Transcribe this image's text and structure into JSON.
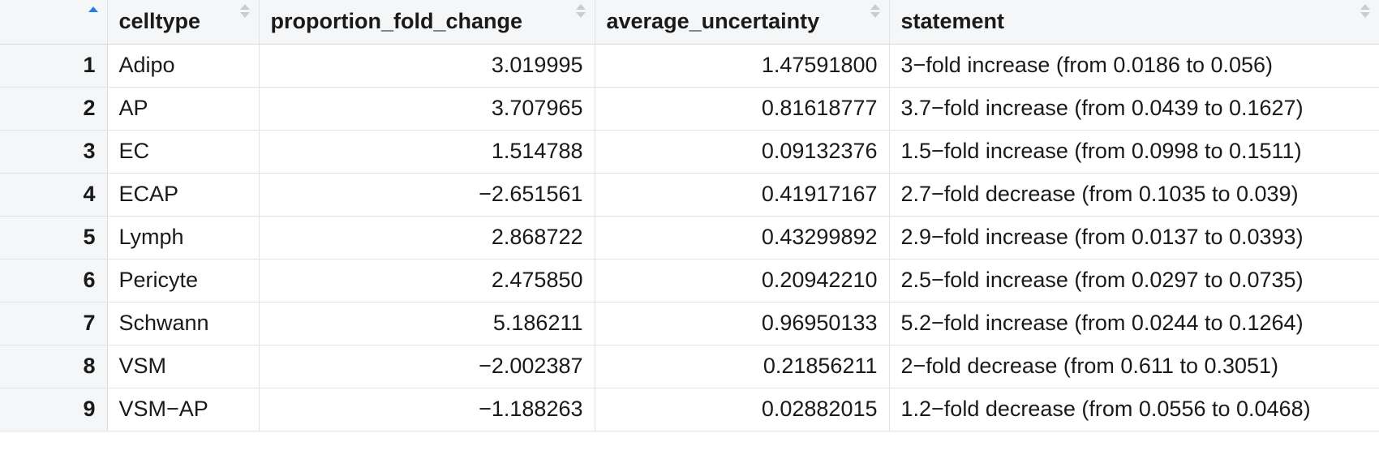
{
  "table": {
    "columns": [
      {
        "label": "",
        "sort": "ascending"
      },
      {
        "label": "celltype",
        "sort": "none"
      },
      {
        "label": "proportion_fold_change",
        "sort": "none"
      },
      {
        "label": "average_uncertainty",
        "sort": "none"
      },
      {
        "label": "statement",
        "sort": "none"
      }
    ],
    "rows": [
      {
        "index": "1",
        "celltype": "Adipo",
        "proportion_fold_change": "3.019995",
        "average_uncertainty": "1.47591800",
        "statement": "3−fold increase (from 0.0186 to 0.056)"
      },
      {
        "index": "2",
        "celltype": "AP",
        "proportion_fold_change": "3.707965",
        "average_uncertainty": "0.81618777",
        "statement": "3.7−fold increase (from 0.0439 to 0.1627)"
      },
      {
        "index": "3",
        "celltype": "EC",
        "proportion_fold_change": "1.514788",
        "average_uncertainty": "0.09132376",
        "statement": "1.5−fold increase (from 0.0998 to 0.1511)"
      },
      {
        "index": "4",
        "celltype": "ECAP",
        "proportion_fold_change": "−2.651561",
        "average_uncertainty": "0.41917167",
        "statement": "2.7−fold decrease (from 0.1035 to 0.039)"
      },
      {
        "index": "5",
        "celltype": "Lymph",
        "proportion_fold_change": "2.868722",
        "average_uncertainty": "0.43299892",
        "statement": "2.9−fold increase (from 0.0137 to 0.0393)"
      },
      {
        "index": "6",
        "celltype": "Pericyte",
        "proportion_fold_change": "2.475850",
        "average_uncertainty": "0.20942210",
        "statement": "2.5−fold increase (from 0.0297 to 0.0735)"
      },
      {
        "index": "7",
        "celltype": "Schwann",
        "proportion_fold_change": "5.186211",
        "average_uncertainty": "0.96950133",
        "statement": "5.2−fold increase (from 0.0244 to 0.1264)"
      },
      {
        "index": "8",
        "celltype": "VSM",
        "proportion_fold_change": "−2.002387",
        "average_uncertainty": "0.21856211",
        "statement": "2−fold decrease (from 0.611 to 0.3051)"
      },
      {
        "index": "9",
        "celltype": "VSM−AP",
        "proportion_fold_change": "−1.188263",
        "average_uncertainty": "0.02882015",
        "statement": "1.2−fold decrease (from 0.0556 to 0.0468)"
      }
    ]
  },
  "colors": {
    "header_bg": "#f4f6f8",
    "grid_line": "#dfe3e7",
    "sort_active": "#2a7de1",
    "sort_inactive": "#c9cdd2"
  }
}
